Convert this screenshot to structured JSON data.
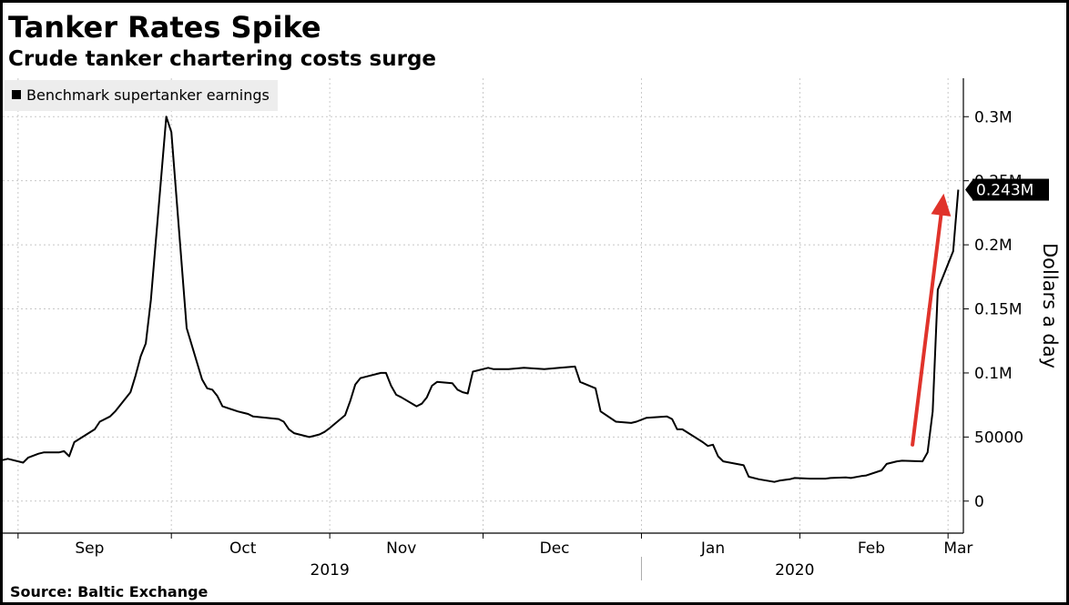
{
  "header": {
    "title": "Tanker Rates Spike",
    "subtitle": "Crude tanker chartering costs surge"
  },
  "footer": {
    "source": "Source: Baltic Exchange"
  },
  "colors": {
    "line": "#000000",
    "arrow": "#e0332b",
    "grid": "#c8c8c8",
    "legend_bg": "#ededed"
  },
  "chart_data": {
    "type": "line",
    "ylabel": "Dollars a day",
    "ylim": [
      -25000,
      330000
    ],
    "y_ticks": [
      {
        "value": 0,
        "label": "0"
      },
      {
        "value": 50000,
        "label": "50000"
      },
      {
        "value": 100000,
        "label": "0.1M"
      },
      {
        "value": 150000,
        "label": "0.15M"
      },
      {
        "value": 200000,
        "label": "0.2M"
      },
      {
        "value": 250000,
        "label": "0.25M"
      },
      {
        "value": 300000,
        "label": "0.3M"
      }
    ],
    "x_range": [
      "2019-08-29",
      "2020-03-04"
    ],
    "month_labels": [
      {
        "date": "2019-09-15",
        "label": "Sep"
      },
      {
        "date": "2019-10-15",
        "label": "Oct"
      },
      {
        "date": "2019-11-15",
        "label": "Nov"
      },
      {
        "date": "2019-12-15",
        "label": "Dec"
      },
      {
        "date": "2020-01-15",
        "label": "Jan"
      },
      {
        "date": "2020-02-15",
        "label": "Feb"
      },
      {
        "date": "2020-03-03",
        "label": "Mar"
      }
    ],
    "month_boundaries": [
      "2019-09-01",
      "2019-10-01",
      "2019-11-01",
      "2019-12-01",
      "2020-01-01",
      "2020-02-01",
      "2020-03-01"
    ],
    "year_labels": [
      {
        "date": "2019-11-01",
        "label": "2019"
      },
      {
        "date": "2020-01-31",
        "label": "2020"
      }
    ],
    "year_divider": "2020-01-01",
    "legend": {
      "label": "Benchmark supertanker earnings",
      "position": "top-left"
    },
    "last_value_label": "0.243M",
    "last_value": 243000,
    "grid": true,
    "series": [
      {
        "name": "Benchmark supertanker earnings",
        "points": [
          [
            "2019-08-29",
            32000
          ],
          [
            "2019-08-30",
            33000
          ],
          [
            "2019-09-02",
            30000
          ],
          [
            "2019-09-03",
            34000
          ],
          [
            "2019-09-05",
            37000
          ],
          [
            "2019-09-06",
            38000
          ],
          [
            "2019-09-09",
            38000
          ],
          [
            "2019-09-10",
            39000
          ],
          [
            "2019-09-11",
            35000
          ],
          [
            "2019-09-12",
            46000
          ],
          [
            "2019-09-16",
            56000
          ],
          [
            "2019-09-17",
            62000
          ],
          [
            "2019-09-19",
            66000
          ],
          [
            "2019-09-20",
            70000
          ],
          [
            "2019-09-23",
            85000
          ],
          [
            "2019-09-24",
            98000
          ],
          [
            "2019-09-25",
            113000
          ],
          [
            "2019-09-26",
            123000
          ],
          [
            "2019-09-27",
            157000
          ],
          [
            "2019-09-30",
            300000
          ],
          [
            "2019-10-01",
            288000
          ],
          [
            "2019-10-04",
            135000
          ],
          [
            "2019-10-07",
            95000
          ],
          [
            "2019-10-08",
            88000
          ],
          [
            "2019-10-09",
            87000
          ],
          [
            "2019-10-10",
            82000
          ],
          [
            "2019-10-11",
            74000
          ],
          [
            "2019-10-14",
            70000
          ],
          [
            "2019-10-15",
            69000
          ],
          [
            "2019-10-16",
            68000
          ],
          [
            "2019-10-17",
            66000
          ],
          [
            "2019-10-22",
            64000
          ],
          [
            "2019-10-23",
            62000
          ],
          [
            "2019-10-24",
            56000
          ],
          [
            "2019-10-25",
            53000
          ],
          [
            "2019-10-28",
            50000
          ],
          [
            "2019-10-29",
            51000
          ],
          [
            "2019-10-30",
            52000
          ],
          [
            "2019-10-31",
            54000
          ],
          [
            "2019-11-01",
            57000
          ],
          [
            "2019-11-04",
            67000
          ],
          [
            "2019-11-05",
            78000
          ],
          [
            "2019-11-06",
            91000
          ],
          [
            "2019-11-07",
            96000
          ],
          [
            "2019-11-08",
            97000
          ],
          [
            "2019-11-11",
            100000
          ],
          [
            "2019-11-12",
            100000
          ],
          [
            "2019-11-13",
            90000
          ],
          [
            "2019-11-14",
            83000
          ],
          [
            "2019-11-15",
            81000
          ],
          [
            "2019-11-18",
            74000
          ],
          [
            "2019-11-19",
            76000
          ],
          [
            "2019-11-20",
            81000
          ],
          [
            "2019-11-21",
            90000
          ],
          [
            "2019-11-22",
            93000
          ],
          [
            "2019-11-25",
            92000
          ],
          [
            "2019-11-26",
            87000
          ],
          [
            "2019-11-27",
            85000
          ],
          [
            "2019-11-28",
            84000
          ],
          [
            "2019-11-29",
            101000
          ],
          [
            "2019-12-02",
            104000
          ],
          [
            "2019-12-03",
            103000
          ],
          [
            "2019-12-04",
            103000
          ],
          [
            "2019-12-06",
            103000
          ],
          [
            "2019-12-09",
            104000
          ],
          [
            "2019-12-13",
            103000
          ],
          [
            "2019-12-16",
            104000
          ],
          [
            "2019-12-19",
            105000
          ],
          [
            "2019-12-20",
            93000
          ],
          [
            "2019-12-23",
            88000
          ],
          [
            "2019-12-24",
            70000
          ],
          [
            "2019-12-27",
            62000
          ],
          [
            "2019-12-30",
            61000
          ],
          [
            "2019-12-31",
            62000
          ],
          [
            "2020-01-02",
            65000
          ],
          [
            "2020-01-06",
            66000
          ],
          [
            "2020-01-07",
            64000
          ],
          [
            "2020-01-08",
            56000
          ],
          [
            "2020-01-09",
            56000
          ],
          [
            "2020-01-13",
            46000
          ],
          [
            "2020-01-14",
            43000
          ],
          [
            "2020-01-15",
            44000
          ],
          [
            "2020-01-16",
            35000
          ],
          [
            "2020-01-17",
            31000
          ],
          [
            "2020-01-21",
            28000
          ],
          [
            "2020-01-22",
            19000
          ],
          [
            "2020-01-24",
            17000
          ],
          [
            "2020-01-27",
            15000
          ],
          [
            "2020-01-28",
            16000
          ],
          [
            "2020-01-30",
            17000
          ],
          [
            "2020-01-31",
            18000
          ],
          [
            "2020-02-03",
            17500
          ],
          [
            "2020-02-06",
            17500
          ],
          [
            "2020-02-07",
            18000
          ],
          [
            "2020-02-10",
            18500
          ],
          [
            "2020-02-11",
            18000
          ],
          [
            "2020-02-13",
            19500
          ],
          [
            "2020-02-14",
            20000
          ],
          [
            "2020-02-17",
            24000
          ],
          [
            "2020-02-18",
            29000
          ],
          [
            "2020-02-20",
            31000
          ],
          [
            "2020-02-21",
            31500
          ],
          [
            "2020-02-25",
            31000
          ],
          [
            "2020-02-26",
            38000
          ],
          [
            "2020-02-27",
            70000
          ],
          [
            "2020-02-28",
            165000
          ],
          [
            "2020-03-02",
            195000
          ],
          [
            "2020-03-03",
            243000
          ]
        ]
      }
    ]
  }
}
